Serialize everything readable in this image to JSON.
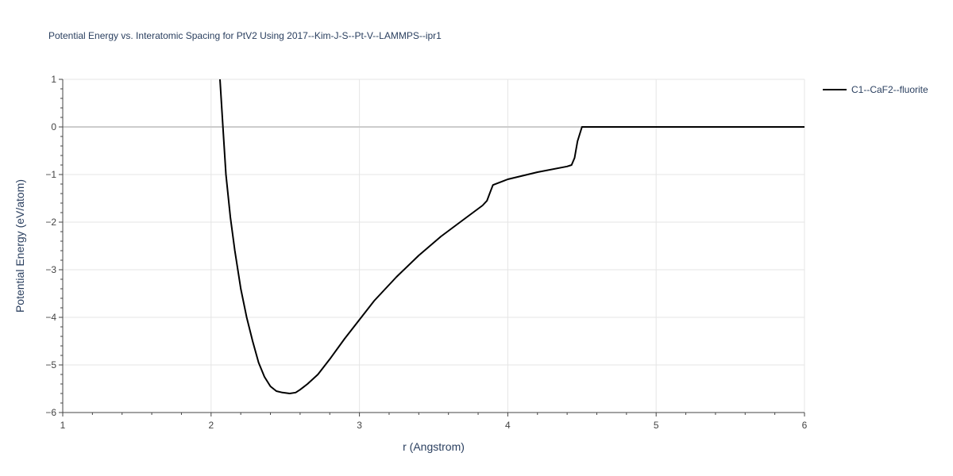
{
  "chart_data": {
    "type": "line",
    "title": "Potential Energy vs. Interatomic Spacing for PtV2 Using 2017--Kim-J-S--Pt-V--LAMMPS--ipr1",
    "xlabel": "r (Angstrom)",
    "ylabel": "Potential Energy (eV/atom)",
    "xlim": [
      1,
      6
    ],
    "ylim": [
      -6,
      1
    ],
    "xticks": [
      1,
      2,
      3,
      4,
      5,
      6
    ],
    "yticks": [
      1,
      0,
      -1,
      -2,
      -3,
      -4,
      -5,
      -6
    ],
    "xtick_labels": [
      "1",
      "2",
      "3",
      "4",
      "5",
      "6"
    ],
    "ytick_labels": [
      "1",
      "0",
      "−1",
      "−2",
      "−3",
      "−4",
      "−5",
      "−6"
    ],
    "grid": true,
    "legend_position": "top-right",
    "series": [
      {
        "name": "C1--CaF2--fluorite",
        "color": "#000000",
        "x": [
          2.06,
          2.08,
          2.1,
          2.13,
          2.16,
          2.2,
          2.24,
          2.28,
          2.32,
          2.36,
          2.4,
          2.44,
          2.48,
          2.53,
          2.57,
          2.6,
          2.65,
          2.72,
          2.8,
          2.9,
          3.0,
          3.1,
          3.25,
          3.4,
          3.55,
          3.7,
          3.83,
          3.86,
          3.88,
          3.9,
          4.0,
          4.2,
          4.4,
          4.43,
          4.45,
          4.47,
          4.5,
          4.6,
          5.0,
          5.5,
          6.0
        ],
        "y": [
          1.0,
          0.0,
          -1.0,
          -1.9,
          -2.6,
          -3.4,
          -4.0,
          -4.5,
          -4.95,
          -5.25,
          -5.45,
          -5.55,
          -5.58,
          -5.6,
          -5.58,
          -5.52,
          -5.4,
          -5.2,
          -4.88,
          -4.45,
          -4.05,
          -3.65,
          -3.15,
          -2.7,
          -2.3,
          -1.95,
          -1.65,
          -1.55,
          -1.38,
          -1.22,
          -1.1,
          -0.95,
          -0.83,
          -0.8,
          -0.65,
          -0.3,
          0.0,
          0.0,
          0.0,
          0.0,
          0.0
        ]
      }
    ]
  },
  "colors": {
    "grid": "#e5e5e5",
    "zeroline": "#cccccc",
    "axis_line": "#444444",
    "text": "#2a3f5f",
    "tick_text": "#444444"
  }
}
